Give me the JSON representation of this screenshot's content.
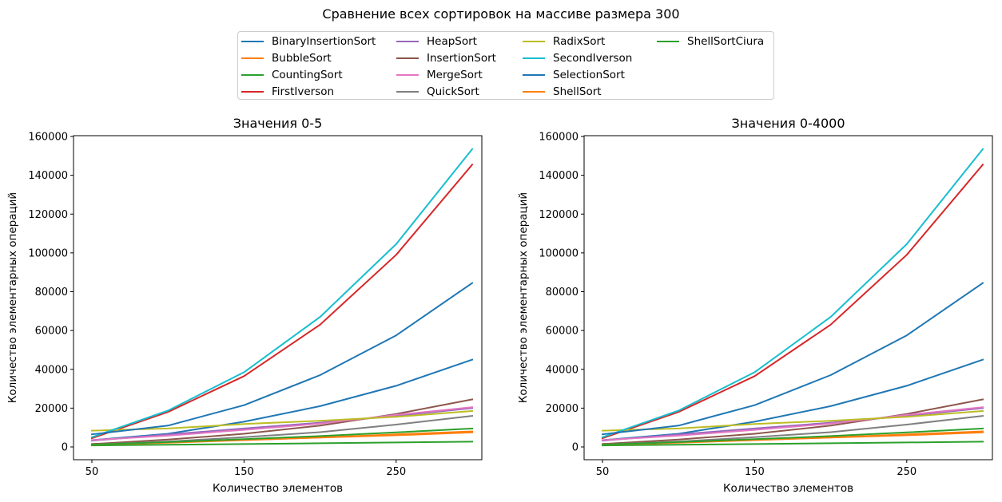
{
  "suptitle": "Сравнение всех сортировок на массиве размера 300",
  "legend": {
    "entries": [
      {
        "name": "BinaryInsertionSort",
        "color": "#1f77b4"
      },
      {
        "name": "BubbleSort",
        "color": "#ff7f0e"
      },
      {
        "name": "CountingSort",
        "color": "#2ca02c"
      },
      {
        "name": "FirstIverson",
        "color": "#d62728"
      },
      {
        "name": "HeapSort",
        "color": "#9467bd"
      },
      {
        "name": "InsertionSort",
        "color": "#8c564b"
      },
      {
        "name": "MergeSort",
        "color": "#e377c2"
      },
      {
        "name": "QuickSort",
        "color": "#7f7f7f"
      },
      {
        "name": "RadixSort",
        "color": "#bcbd22"
      },
      {
        "name": "SecondIverson",
        "color": "#17becf"
      },
      {
        "name": "SelectionSort",
        "color": "#1f77b4"
      },
      {
        "name": "ShellSort",
        "color": "#ff7f0e"
      },
      {
        "name": "ShellSortCiura",
        "color": "#2ca02c"
      }
    ]
  },
  "chart_data": [
    {
      "type": "line",
      "title": "Значения 0-5",
      "xlabel": "Количество элементов",
      "ylabel": "Количество элементарных операций",
      "xlim": [
        50,
        300
      ],
      "ylim": [
        0,
        160000
      ],
      "xticks": [
        50,
        150,
        250
      ],
      "yticks": [
        0,
        20000,
        40000,
        60000,
        80000,
        100000,
        120000,
        140000,
        160000
      ],
      "grid": false,
      "x": [
        50,
        100,
        150,
        200,
        250,
        300
      ],
      "series": [
        {
          "name": "BinaryInsertionSort",
          "color": "#1f77b4",
          "values": [
            3500,
            6800,
            13000,
            21000,
            31500,
            45000
          ]
        },
        {
          "name": "BubbleSort",
          "color": "#ff7f0e",
          "values": [
            1500,
            2600,
            3600,
            4800,
            6000,
            7500
          ]
        },
        {
          "name": "CountingSort",
          "color": "#2ca02c",
          "values": [
            800,
            1100,
            1500,
            1900,
            2300,
            2700
          ]
        },
        {
          "name": "FirstIverson",
          "color": "#d62728",
          "values": [
            4500,
            18000,
            36500,
            63000,
            99000,
            145500
          ]
        },
        {
          "name": "HeapSort",
          "color": "#9467bd",
          "values": [
            3200,
            6400,
            9500,
            12500,
            16000,
            20000
          ]
        },
        {
          "name": "InsertionSort",
          "color": "#8c564b",
          "values": [
            1500,
            3800,
            6800,
            11000,
            17000,
            24500
          ]
        },
        {
          "name": "MergeSort",
          "color": "#e377c2",
          "values": [
            3500,
            5800,
            8800,
            12000,
            16500,
            20500
          ]
        },
        {
          "name": "QuickSort",
          "color": "#7f7f7f",
          "values": [
            1200,
            2800,
            5000,
            7600,
            11500,
            16000
          ]
        },
        {
          "name": "RadixSort",
          "color": "#bcbd22",
          "values": [
            8400,
            9500,
            11800,
            13500,
            15500,
            18500
          ]
        },
        {
          "name": "SecondIverson",
          "color": "#17becf",
          "values": [
            5000,
            18700,
            38500,
            67000,
            104500,
            153500
          ]
        },
        {
          "name": "SelectionSort",
          "color": "#1f77b4",
          "values": [
            6500,
            11000,
            21500,
            37000,
            57500,
            84500
          ]
        },
        {
          "name": "ShellSort",
          "color": "#ff7f0e",
          "values": [
            1200,
            2200,
            3500,
            4900,
            6500,
            8000
          ]
        },
        {
          "name": "ShellSortCiura",
          "color": "#2ca02c",
          "values": [
            1200,
            2500,
            4000,
            5600,
            7500,
            9500
          ]
        }
      ]
    },
    {
      "type": "line",
      "title": "Значения 0-4000",
      "xlabel": "Количество элементов",
      "ylabel": "Количество элементарных операций",
      "xlim": [
        50,
        300
      ],
      "ylim": [
        0,
        160000
      ],
      "xticks": [
        50,
        150,
        250
      ],
      "yticks": [
        0,
        20000,
        40000,
        60000,
        80000,
        100000,
        120000,
        140000,
        160000
      ],
      "grid": false,
      "x": [
        50,
        100,
        150,
        200,
        250,
        300
      ],
      "series": [
        {
          "name": "BinaryInsertionSort",
          "color": "#1f77b4",
          "values": [
            3500,
            6800,
            13000,
            21000,
            31500,
            45000
          ]
        },
        {
          "name": "BubbleSort",
          "color": "#ff7f0e",
          "values": [
            1500,
            2600,
            3600,
            4800,
            6000,
            7500
          ]
        },
        {
          "name": "CountingSort",
          "color": "#2ca02c",
          "values": [
            800,
            1100,
            1500,
            1900,
            2300,
            2700
          ]
        },
        {
          "name": "FirstIverson",
          "color": "#d62728",
          "values": [
            4500,
            18000,
            36500,
            63000,
            99000,
            145500
          ]
        },
        {
          "name": "HeapSort",
          "color": "#9467bd",
          "values": [
            3200,
            6400,
            9500,
            12500,
            16000,
            20000
          ]
        },
        {
          "name": "InsertionSort",
          "color": "#8c564b",
          "values": [
            1500,
            3800,
            6800,
            11000,
            17000,
            24500
          ]
        },
        {
          "name": "MergeSort",
          "color": "#e377c2",
          "values": [
            3500,
            5800,
            8800,
            12000,
            16500,
            20500
          ]
        },
        {
          "name": "QuickSort",
          "color": "#7f7f7f",
          "values": [
            1200,
            2800,
            5000,
            7600,
            11500,
            16000
          ]
        },
        {
          "name": "RadixSort",
          "color": "#bcbd22",
          "values": [
            8400,
            9500,
            11800,
            13500,
            15500,
            18500
          ]
        },
        {
          "name": "SecondIverson",
          "color": "#17becf",
          "values": [
            5000,
            18700,
            38500,
            67000,
            104500,
            153500
          ]
        },
        {
          "name": "SelectionSort",
          "color": "#1f77b4",
          "values": [
            6500,
            11000,
            21500,
            37000,
            57500,
            84500
          ]
        },
        {
          "name": "ShellSort",
          "color": "#ff7f0e",
          "values": [
            1200,
            2200,
            3500,
            4900,
            6500,
            8000
          ]
        },
        {
          "name": "ShellSortCiura",
          "color": "#2ca02c",
          "values": [
            1200,
            2500,
            4000,
            5600,
            7500,
            9500
          ]
        }
      ]
    }
  ]
}
